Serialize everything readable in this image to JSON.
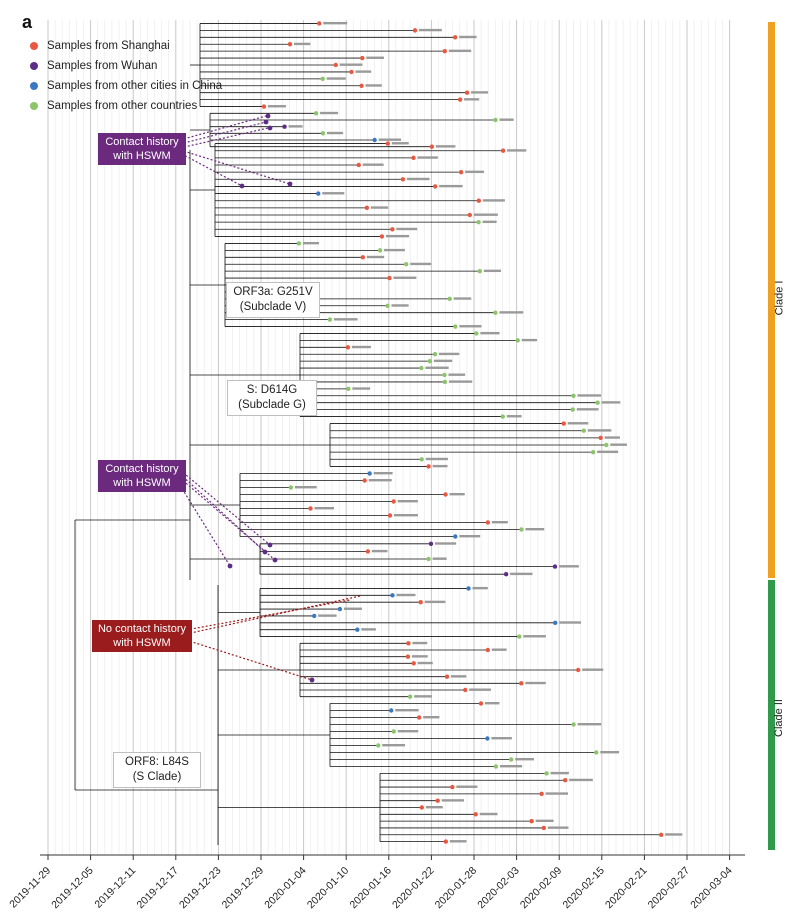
{
  "panel_label": "a",
  "legend": [
    {
      "label": "Samples from Shanghai",
      "color": "#e9573f"
    },
    {
      "label": "Samples from Wuhan",
      "color": "#5b2d86"
    },
    {
      "label": "Samples from other cities in China",
      "color": "#3a78c2"
    },
    {
      "label": "Samples from other countries",
      "color": "#8cc46b"
    }
  ],
  "callouts": {
    "contact_1": {
      "line1": "Contact history",
      "line2": "with HSWM"
    },
    "contact_2": {
      "line1": "Contact history",
      "line2": "with HSWM"
    },
    "no_contact": {
      "line1": "No contact history",
      "line2": "with HSWM"
    }
  },
  "mutation_labels": {
    "orf3a": {
      "line1": "ORF3a: G251V",
      "line2": "(Subclade V)"
    },
    "spike": {
      "line1": "S: D614G",
      "line2": "(Subclade G)"
    },
    "orf8": {
      "line1": "ORF8: L84S",
      "line2": "(S Clade)"
    }
  },
  "clades": [
    {
      "name": "Clade I",
      "color": "#f0a020"
    },
    {
      "name": "Clade II",
      "color": "#2e9a4a"
    }
  ],
  "x_axis_ticks": [
    "2019-11-29",
    "2019-12-05",
    "2019-12-11",
    "2019-12-17",
    "2019-12-23",
    "2019-12-29",
    "2020-01-04",
    "2020-01-10",
    "2020-01-16",
    "2020-01-22",
    "2020-01-28",
    "2020-02-03",
    "2020-02-09",
    "2020-02-15",
    "2020-02-21",
    "2020-02-27",
    "2020-03-04"
  ]
}
